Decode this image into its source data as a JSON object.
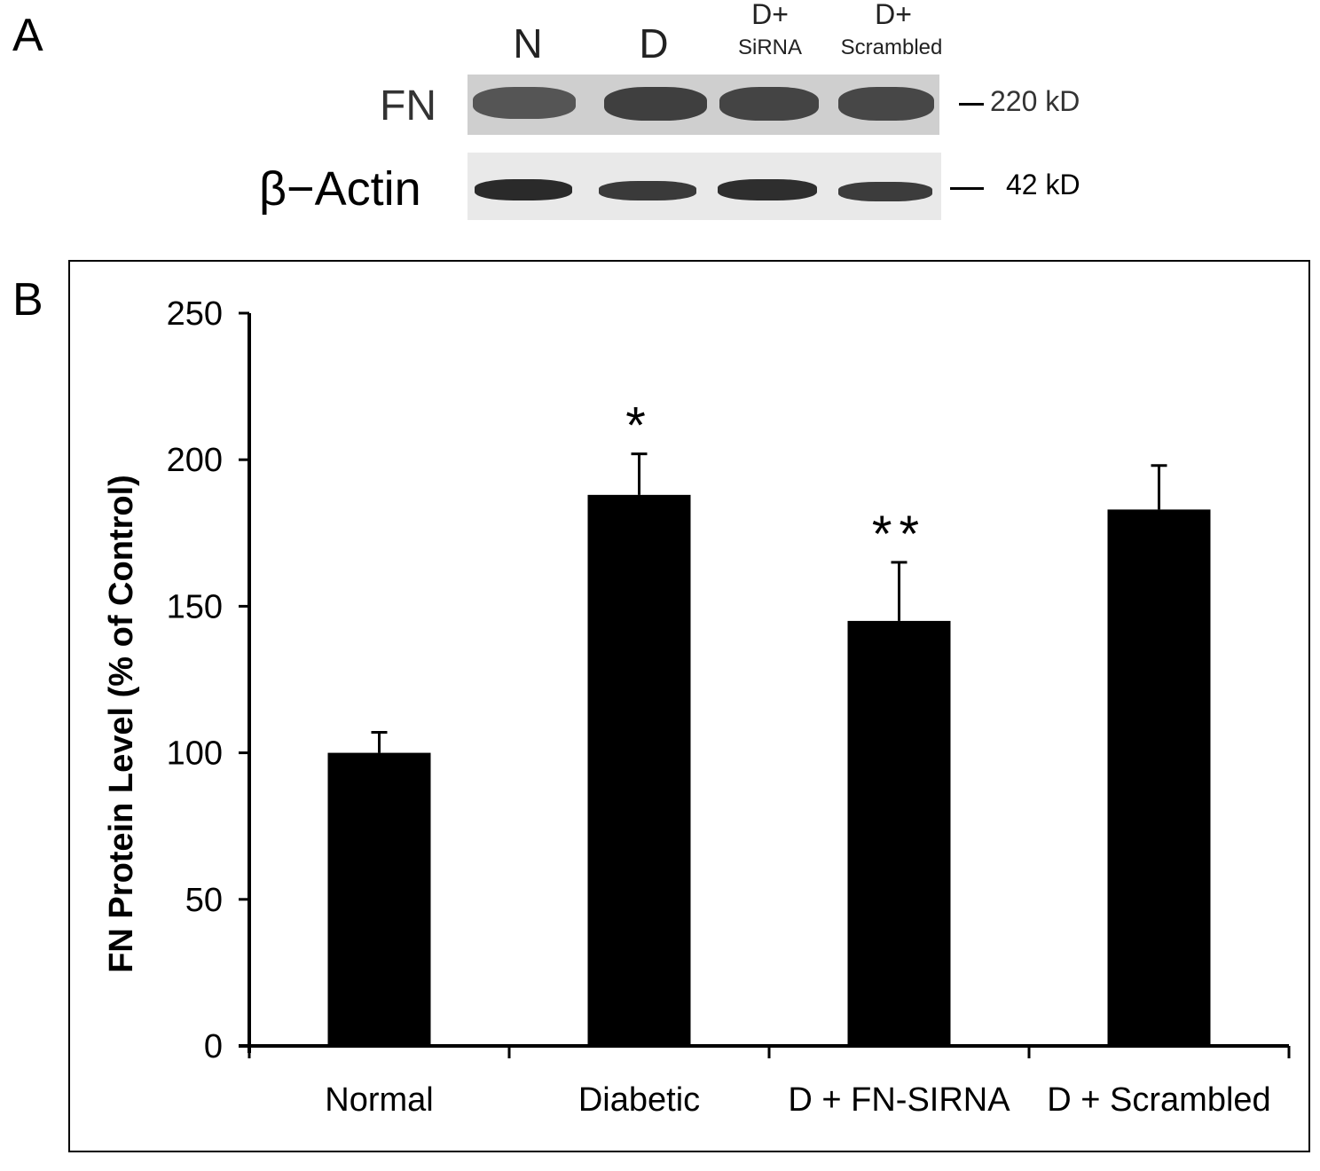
{
  "panel_a": {
    "label": "A",
    "lanes": [
      {
        "main": "N",
        "sub": ""
      },
      {
        "main": "D",
        "sub": ""
      },
      {
        "main": "D+",
        "sub": "SiRNA"
      },
      {
        "main": "D+",
        "sub": "Scrambled"
      }
    ],
    "blots": [
      {
        "label": "FN",
        "mw": "220 kD"
      },
      {
        "label": "β−Actin",
        "mw": "42 kD"
      }
    ]
  },
  "panel_b": {
    "label": "B"
  },
  "chart_data": {
    "type": "bar",
    "title": "",
    "xlabel": "",
    "ylabel": "FN Protein Level (% of Control)",
    "ylim": [
      0,
      250
    ],
    "yticks": [
      "0",
      "50",
      "100",
      "150",
      "200",
      "250"
    ],
    "categories": [
      "Normal",
      "Diabetic",
      "D + FN-SIRNA",
      "D + Scrambled"
    ],
    "values": [
      100,
      188,
      145,
      183
    ],
    "errors": [
      7,
      14,
      20,
      15
    ],
    "annotations": [
      "",
      "*",
      "**",
      ""
    ],
    "bar_color": "#000000"
  }
}
